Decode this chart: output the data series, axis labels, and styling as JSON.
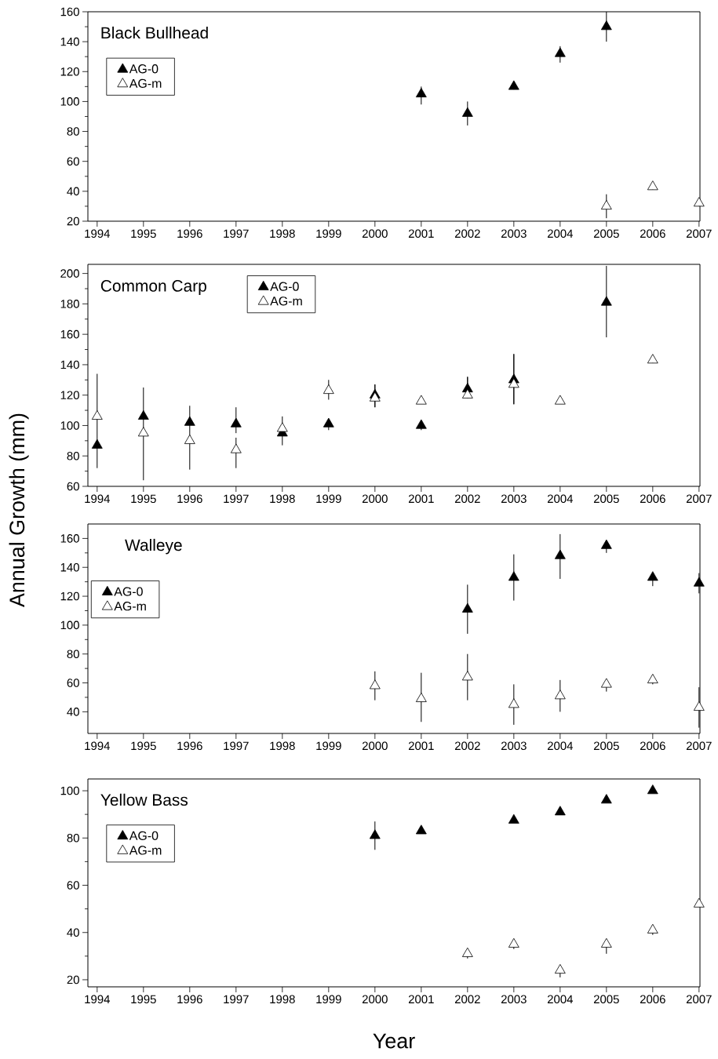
{
  "chart_data": [
    {
      "type": "scatter",
      "title": "Black Bullhead",
      "xlim": [
        1993.8,
        2007.02
      ],
      "ylim": [
        20,
        160
      ],
      "xticks": [
        1994,
        1995,
        1996,
        1997,
        1998,
        1999,
        2000,
        2001,
        2002,
        2003,
        2004,
        2005,
        2006,
        2007
      ],
      "yticks": [
        20,
        40,
        60,
        80,
        100,
        120,
        140,
        160
      ],
      "marker": "triangle",
      "legend": "top left",
      "series": [
        {
          "name": "AG-0",
          "color": "#000000",
          "x": [
            2001,
            2002,
            2003,
            2004,
            2005
          ],
          "values": [
            105,
            92,
            110,
            132,
            150
          ],
          "errors": [
            [
              98,
              110
            ],
            [
              84,
              100
            ],
            [
              108,
              113
            ],
            [
              126,
              137
            ],
            [
              140,
              160
            ]
          ]
        },
        {
          "name": "AG-m",
          "color": "#ffffff",
          "x": [
            2005,
            2006,
            2007
          ],
          "values": [
            30,
            43,
            32
          ],
          "errors": [
            [
              22,
              38
            ],
            [
              41,
              44
            ],
            [
              30,
              33
            ]
          ]
        }
      ]
    },
    {
      "type": "scatter",
      "title": "Common Carp",
      "ylabel": "Annual Growth (mm)",
      "xlim": [
        1993.8,
        2007.02
      ],
      "ylim": [
        60,
        206
      ],
      "xticks": [
        1994,
        1995,
        1996,
        1997,
        1998,
        1999,
        2000,
        2001,
        2002,
        2003,
        2004,
        2005,
        2006,
        2007
      ],
      "yticks": [
        60,
        80,
        100,
        120,
        140,
        160,
        180,
        200
      ],
      "marker": "triangle",
      "legend": "top",
      "series": [
        {
          "name": "AG-0",
          "color": "#000000",
          "x": [
            1994,
            1995,
            1996,
            1997,
            1998,
            1999,
            2000,
            2001,
            2002,
            2003,
            2005
          ],
          "values": [
            87,
            106,
            102,
            101,
            95,
            101,
            120,
            100,
            124,
            130,
            181
          ],
          "errors": [
            null,
            null,
            null,
            [
              95,
              112
            ],
            null,
            [
              97,
              104
            ],
            [
              112,
              127
            ],
            [
              97,
              101
            ],
            [
              118,
              132
            ],
            [
              114,
              147
            ],
            [
              158,
              205
            ]
          ]
        },
        {
          "name": "AG-m",
          "color": "#ffffff",
          "x": [
            1994,
            1995,
            1996,
            1997,
            1998,
            1999,
            2000,
            2001,
            2002,
            2003,
            2004,
            2006
          ],
          "values": [
            106,
            95,
            90,
            84,
            98,
            123,
            118,
            116,
            120,
            127,
            116,
            143
          ],
          "errors": [
            [
              72,
              134
            ],
            [
              64,
              125
            ],
            [
              71,
              113
            ],
            [
              72,
              92
            ],
            [
              87,
              106
            ],
            [
              117,
              130
            ],
            [
              112,
              127
            ],
            null,
            [
              118,
              132
            ],
            [
              114,
              147
            ],
            null,
            [
              141,
              145
            ]
          ]
        }
      ]
    },
    {
      "type": "scatter",
      "title": "Walleye",
      "xlim": [
        1993.8,
        2007.02
      ],
      "ylim": [
        25,
        170
      ],
      "xticks": [
        1994,
        1995,
        1996,
        1997,
        1998,
        1999,
        2000,
        2001,
        2002,
        2003,
        2004,
        2005,
        2006,
        2007
      ],
      "yticks": [
        40,
        60,
        80,
        100,
        120,
        140,
        160
      ],
      "marker": "triangle",
      "legend": "left",
      "series": [
        {
          "name": "AG-0",
          "color": "#000000",
          "x": [
            2002,
            2003,
            2004,
            2005,
            2006,
            2007
          ],
          "values": [
            111,
            133,
            148,
            155,
            133,
            129
          ],
          "errors": [
            [
              94,
              128
            ],
            [
              117,
              149
            ],
            [
              132,
              163
            ],
            [
              150,
              157
            ],
            [
              127,
              135
            ],
            [
              122,
              136
            ]
          ]
        },
        {
          "name": "AG-m",
          "color": "#ffffff",
          "x": [
            2000,
            2001,
            2002,
            2003,
            2004,
            2005,
            2006,
            2007
          ],
          "values": [
            58,
            49,
            64,
            45,
            51,
            59,
            62,
            43
          ],
          "errors": [
            [
              48,
              68
            ],
            [
              33,
              67
            ],
            [
              48,
              80
            ],
            [
              31,
              59
            ],
            [
              40,
              62
            ],
            [
              54,
              61
            ],
            [
              59,
              63
            ],
            [
              29,
              57
            ]
          ]
        }
      ]
    },
    {
      "type": "scatter",
      "title": "Yellow Bass",
      "xlabel": "Year",
      "xlim": [
        1993.8,
        2007.02
      ],
      "ylim": [
        17,
        105
      ],
      "xticks": [
        1994,
        1995,
        1996,
        1997,
        1998,
        1999,
        2000,
        2001,
        2002,
        2003,
        2004,
        2005,
        2006,
        2007
      ],
      "yticks": [
        20,
        40,
        60,
        80,
        100
      ],
      "marker": "triangle",
      "legend": "top left",
      "series": [
        {
          "name": "AG-0",
          "color": "#000000",
          "x": [
            2000,
            2001,
            2003,
            2004,
            2005,
            2006
          ],
          "values": [
            81,
            83,
            87.5,
            91,
            96,
            100
          ],
          "errors": [
            [
              75,
              87
            ],
            null,
            null,
            [
              90,
              93
            ],
            null,
            null
          ]
        },
        {
          "name": "AG-m",
          "color": "#ffffff",
          "x": [
            2002,
            2003,
            2004,
            2005,
            2006,
            2007
          ],
          "values": [
            31,
            35,
            24,
            35,
            41,
            52
          ],
          "errors": [
            [
              29,
              32
            ],
            [
              33,
              36
            ],
            [
              21,
              25
            ],
            [
              31,
              36
            ],
            [
              39,
              42
            ],
            null
          ]
        }
      ]
    }
  ]
}
